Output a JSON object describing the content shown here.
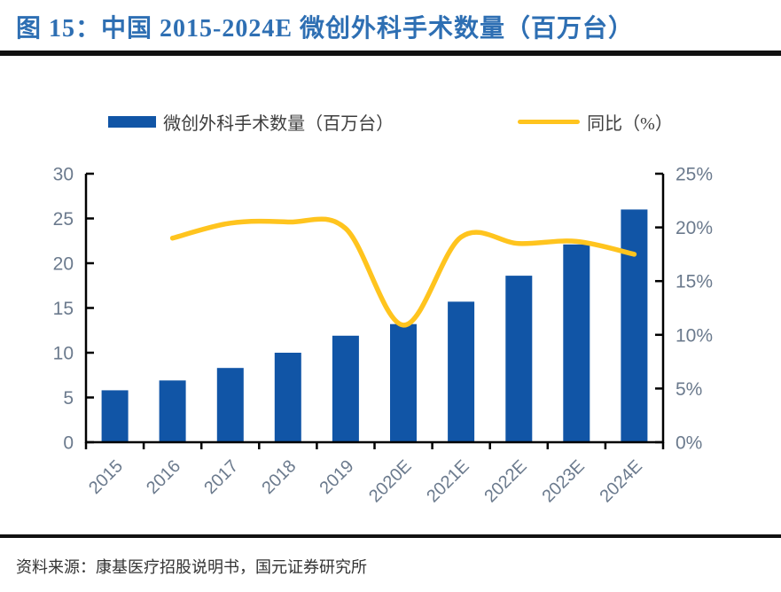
{
  "header": {
    "title": "图 15：中国 2015-2024E 微创外科手术数量（百万台）"
  },
  "legend": [
    {
      "label": "微创外科手术数量（百万台）",
      "color": "#1155a6",
      "type": "bar"
    },
    {
      "label": "同比（%）",
      "color": "#ffc41e",
      "type": "line"
    }
  ],
  "footer": {
    "source": "资料来源：康基医疗招股说明书，国元证券研究所"
  },
  "colors": {
    "title": "#2e6fb3",
    "bar": "#1155a6",
    "line": "#ffc41e",
    "tick_label": "#6b7a8d",
    "axis": "#000000"
  },
  "chart_data": {
    "type": "bar",
    "title": "中国 2015-2024E 微创外科手术数量（百万台）",
    "categories": [
      "2015",
      "2016",
      "2017",
      "2018",
      "2019",
      "2020E",
      "2021E",
      "2022E",
      "2023E",
      "2024E"
    ],
    "series": [
      {
        "name": "微创外科手术数量（百万台）",
        "type": "bar",
        "axis": "left",
        "color": "#1155a6",
        "values": [
          5.8,
          6.9,
          8.3,
          10.0,
          11.9,
          13.2,
          15.7,
          18.6,
          22.1,
          26.0
        ]
      },
      {
        "name": "同比（%）",
        "type": "line",
        "axis": "right",
        "color": "#ffc41e",
        "values": [
          null,
          19.0,
          20.4,
          20.5,
          19.9,
          10.9,
          19.1,
          18.5,
          18.7,
          17.5
        ]
      }
    ],
    "left_axis": {
      "min": 0,
      "max": 30,
      "ticks": [
        0,
        5,
        10,
        15,
        20,
        25,
        30
      ]
    },
    "right_axis": {
      "min": 0,
      "max": 25,
      "ticks": [
        "0%",
        "5%",
        "10%",
        "15%",
        "20%",
        "25%"
      ]
    },
    "grid": false,
    "legend_position": "top"
  }
}
